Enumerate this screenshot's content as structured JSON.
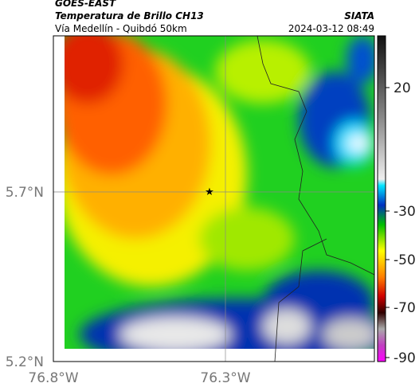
{
  "header": {
    "satellite": "GOES-EAST",
    "title": "Temperatura de Brillo CH13",
    "subtitle": "Vía Medellín - Quibdó 50km",
    "source": "SIATA",
    "datetime": "2024-03-12 08:49"
  },
  "axes": {
    "lat_labels": [
      "5.7°N",
      "5.2°N"
    ],
    "lon_labels": [
      "76.8°W",
      "76.3°W"
    ]
  },
  "colorbar": {
    "ticks": [
      "20",
      "-30",
      "-50",
      "-70",
      "-90"
    ]
  }
}
